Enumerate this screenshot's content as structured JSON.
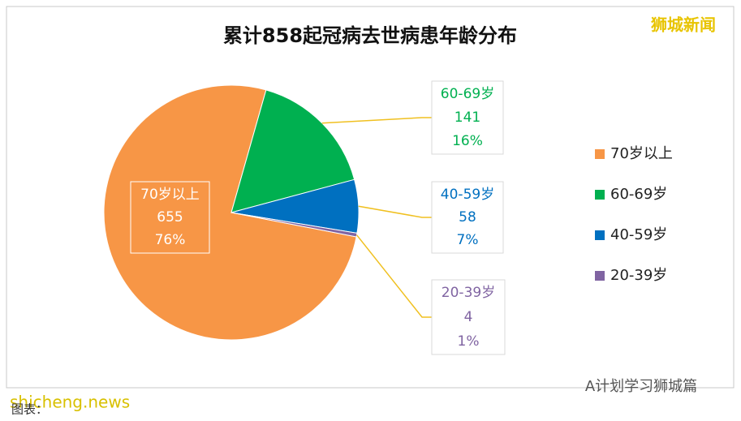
{
  "chart_data": {
    "type": "pie",
    "title": "累计858起冠病去世病患年龄分布",
    "categories": [
      "70岁以上",
      "60-69岁",
      "40-59岁",
      "20-39岁"
    ],
    "values": [
      655,
      141,
      58,
      4
    ],
    "percent_labels": [
      "76%",
      "16%",
      "7%",
      "1%"
    ],
    "colors": [
      "#f79646",
      "#00b050",
      "#0070c0",
      "#8064a2"
    ],
    "legend": "right"
  },
  "watermarks": {
    "top_right": "狮城新闻",
    "bottom_left": "shicheng.news",
    "bottom_right": "A计划学习狮城篇",
    "caption": "图表："
  }
}
